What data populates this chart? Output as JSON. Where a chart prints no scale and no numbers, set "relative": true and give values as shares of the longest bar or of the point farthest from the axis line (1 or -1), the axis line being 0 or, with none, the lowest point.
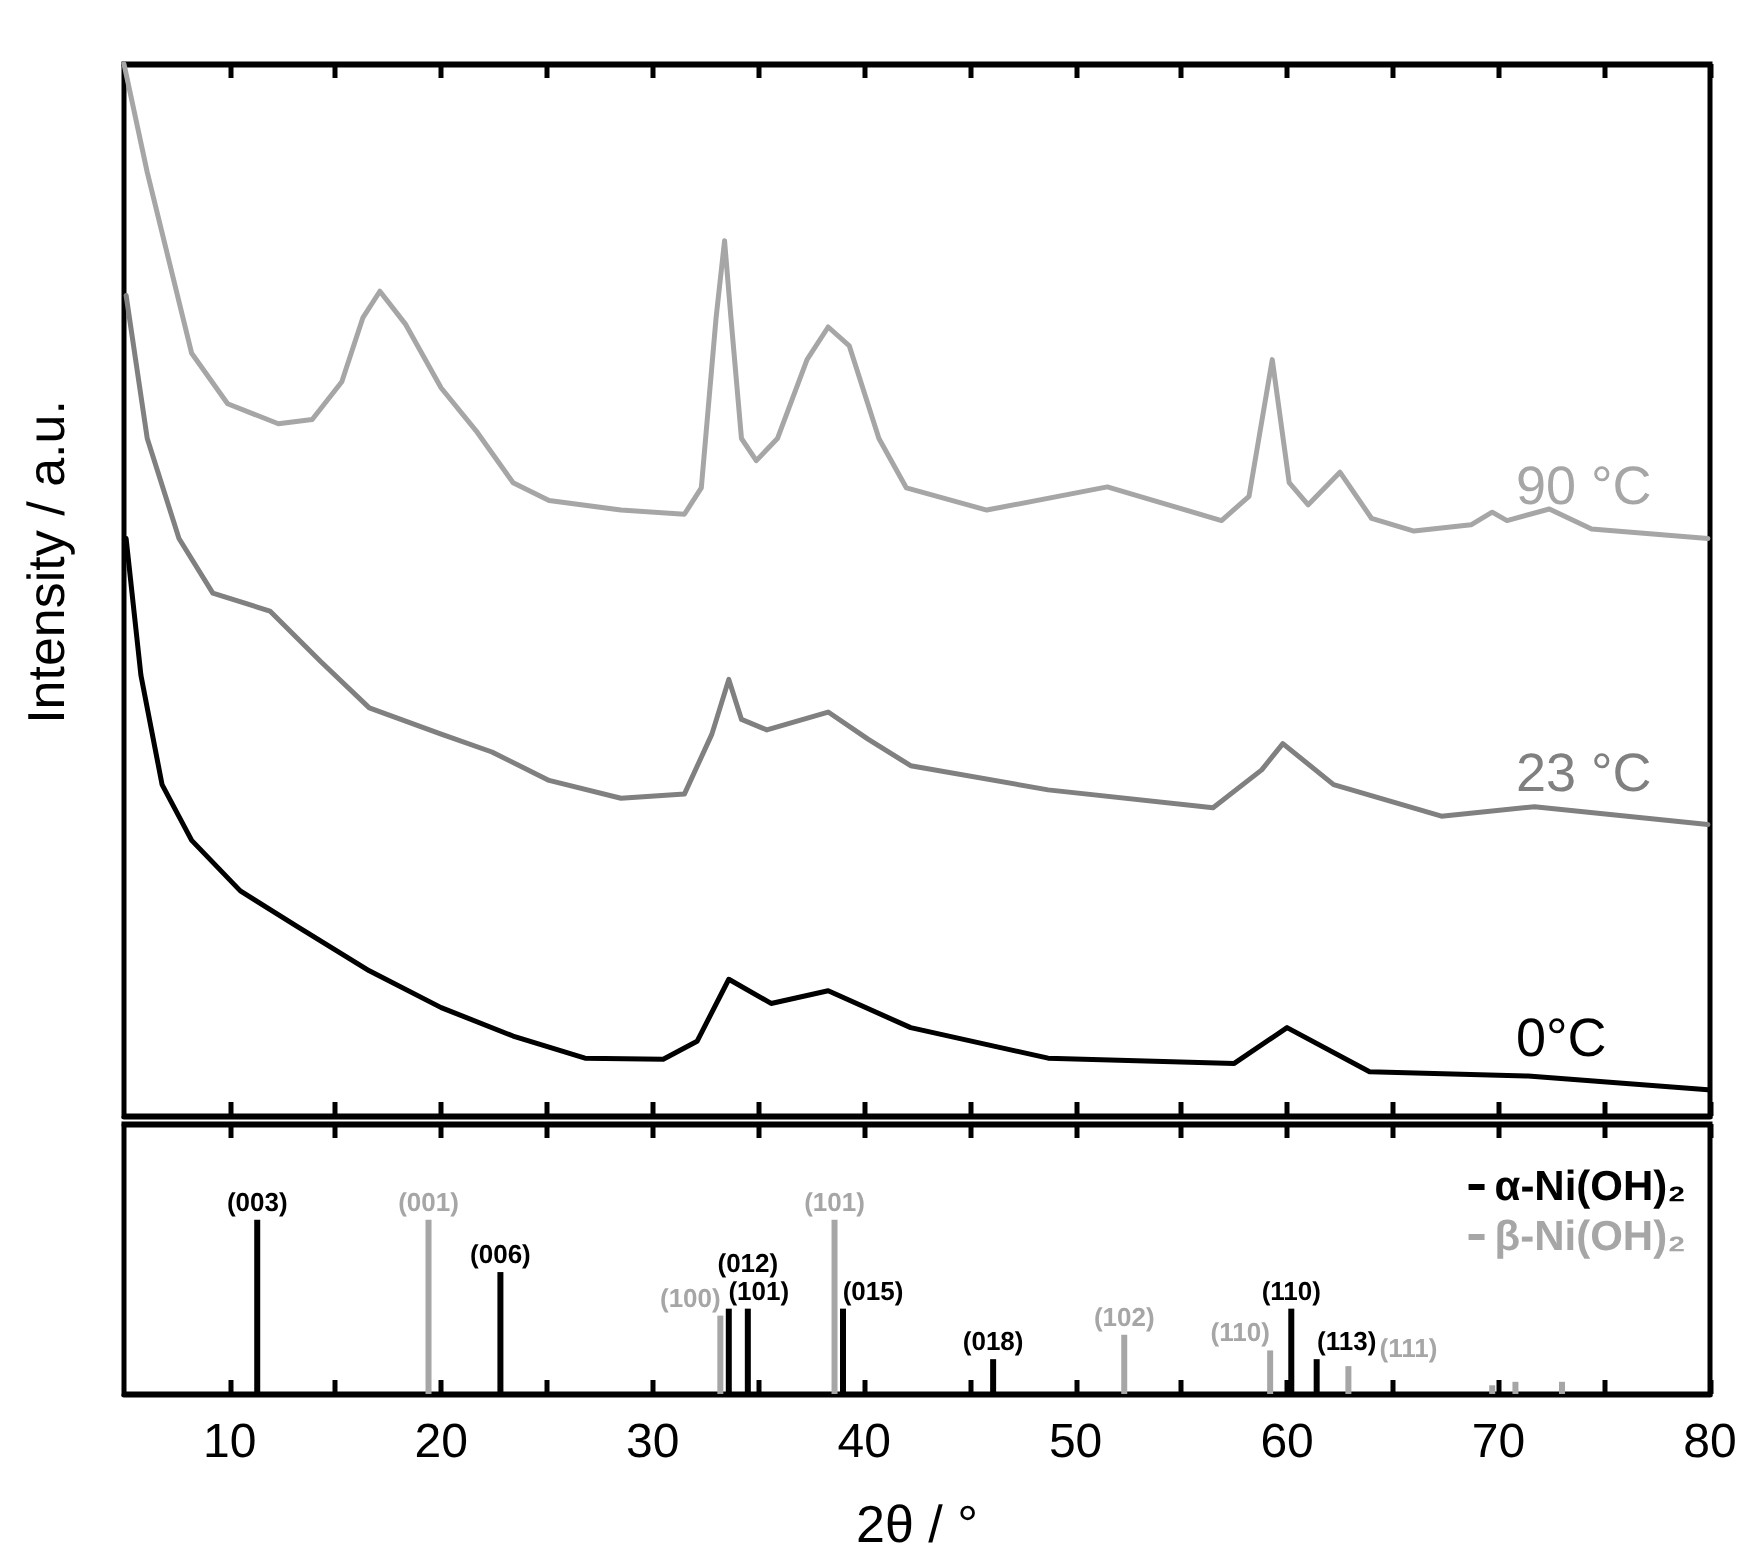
{
  "chart_data": [
    {
      "type": "line",
      "relative": true,
      "ylabel": "Intensity / a.u.",
      "xlim": [
        5,
        80
      ],
      "xticks": [
        10,
        {
          "value": 15,
          "label": null
        },
        20,
        {
          "value": 25,
          "label": null
        },
        30,
        {
          "value": 35,
          "label": null
        },
        40,
        {
          "value": 45,
          "label": null
        },
        50,
        {
          "value": 55,
          "label": null
        },
        60,
        {
          "value": 65,
          "label": null
        },
        70,
        {
          "value": 75,
          "label": null
        },
        80
      ],
      "tick_labels": false,
      "series": [
        {
          "name": "90 °C",
          "color": "#a6a6a6",
          "x": [
            5,
            6.1,
            8.2,
            9.9,
            12.3,
            13.9,
            15.3,
            16.3,
            17.1,
            18.3,
            20.0,
            21.7,
            23.4,
            25.1,
            28.5,
            31.5,
            32.3,
            33.0,
            33.4,
            33.7,
            34.2,
            34.9,
            35.9,
            37.3,
            38.3,
            39.3,
            40.7,
            42.0,
            45.8,
            51.5,
            56.9,
            58.2,
            59.3,
            60.1,
            61.0,
            62.5,
            64.0,
            66.0,
            68.7,
            69.7,
            70.4,
            72.4,
            74.4,
            79.9
          ],
          "values": [
            1.0,
            0.897,
            0.725,
            0.677,
            0.658,
            0.662,
            0.698,
            0.759,
            0.784,
            0.753,
            0.692,
            0.65,
            0.602,
            0.585,
            0.576,
            0.572,
            0.597,
            0.759,
            0.832,
            0.759,
            0.644,
            0.623,
            0.644,
            0.719,
            0.75,
            0.732,
            0.644,
            0.597,
            0.576,
            0.598,
            0.566,
            0.589,
            0.719,
            0.602,
            0.581,
            0.612,
            0.568,
            0.556,
            0.562,
            0.574,
            0.566,
            0.577,
            0.558,
            0.549
          ]
        },
        {
          "name": "23 °C",
          "color": "#808080",
          "x": [
            5.1,
            6.1,
            7.6,
            9.2,
            11.9,
            14.3,
            16.6,
            20.0,
            22.4,
            25.1,
            28.5,
            31.5,
            32.8,
            33.6,
            34.2,
            35.4,
            38.3,
            40.2,
            42.2,
            48.7,
            56.5,
            58.8,
            59.8,
            62.2,
            67.3,
            71.7,
            79.9
          ],
          "values": [
            0.78,
            0.644,
            0.549,
            0.497,
            0.48,
            0.432,
            0.388,
            0.363,
            0.346,
            0.319,
            0.302,
            0.306,
            0.363,
            0.415,
            0.377,
            0.367,
            0.384,
            0.358,
            0.333,
            0.31,
            0.293,
            0.329,
            0.354,
            0.315,
            0.285,
            0.294,
            0.277
          ]
        },
        {
          "name": "0°C",
          "color": "#000000",
          "x": [
            5.1,
            5.8,
            6.8,
            8.2,
            10.5,
            13.2,
            16.6,
            20.0,
            23.4,
            26.8,
            30.5,
            32.1,
            33.6,
            35.6,
            38.3,
            42.2,
            48.7,
            57.5,
            60.0,
            63.9,
            71.4,
            79.9
          ],
          "values": [
            0.549,
            0.419,
            0.315,
            0.262,
            0.214,
            0.18,
            0.138,
            0.103,
            0.076,
            0.055,
            0.054,
            0.071,
            0.13,
            0.107,
            0.119,
            0.084,
            0.055,
            0.05,
            0.084,
            0.042,
            0.038,
            0.025
          ]
        }
      ]
    },
    {
      "type": "bar",
      "relative": true,
      "xlabel": "2θ / °",
      "xlim": [
        5,
        80
      ],
      "xticks": [
        10,
        {
          "value": 15,
          "label": null
        },
        20,
        {
          "value": 25,
          "label": null
        },
        30,
        {
          "value": 35,
          "label": null
        },
        40,
        {
          "value": 45,
          "label": null
        },
        50,
        {
          "value": 55,
          "label": null
        },
        60,
        {
          "value": 65,
          "label": null
        },
        70,
        {
          "value": 75,
          "label": null
        },
        80
      ],
      "legend": "top right",
      "series": [
        {
          "name": "α-Ni(OH)₂",
          "color": "#000000",
          "x": [
            11.3,
            22.8,
            33.6,
            34.5,
            39.0,
            46.1,
            60.2,
            61.4
          ],
          "values": [
            1.0,
            0.7,
            0.49,
            0.49,
            0.49,
            0.2,
            0.49,
            0.2
          ]
        },
        {
          "name": "β-Ni(OH)₂",
          "color": "#a6a6a6",
          "x": [
            19.4,
            33.2,
            38.6,
            52.3,
            59.2,
            62.9,
            69.7,
            70.8,
            73.0
          ],
          "values": [
            1.0,
            0.45,
            1.0,
            0.34,
            0.25,
            0.16,
            0.05,
            0.07,
            0.07
          ]
        }
      ],
      "annotations": [
        {
          "text": "(003)",
          "x": 11.3,
          "y": 1.0
        },
        {
          "text": "(001)",
          "x": 19.4,
          "y": 1.0
        },
        {
          "text": "(006)",
          "x": 22.8,
          "y": 0.7
        },
        {
          "text": "(100)",
          "x": 33.2,
          "y": 0.45
        },
        {
          "text": "(101)",
          "x": 33.6,
          "y": 0.49
        },
        {
          "text": "(012)",
          "x": 34.5,
          "y": 0.49
        },
        {
          "text": "(101)",
          "x": 38.6,
          "y": 1.0
        },
        {
          "text": "(015)",
          "x": 39.0,
          "y": 0.49
        },
        {
          "text": "(018)",
          "x": 46.1,
          "y": 0.2
        },
        {
          "text": "(102)",
          "x": 52.3,
          "y": 0.34
        },
        {
          "text": "(110)",
          "x": 59.2,
          "y": 0.25
        },
        {
          "text": "(110)",
          "x": 60.2,
          "y": 0.49
        },
        {
          "text": "(113)",
          "x": 61.4,
          "y": 0.2
        },
        {
          "text": "(111)",
          "x": 62.9,
          "y": 0.16
        }
      ]
    }
  ]
}
